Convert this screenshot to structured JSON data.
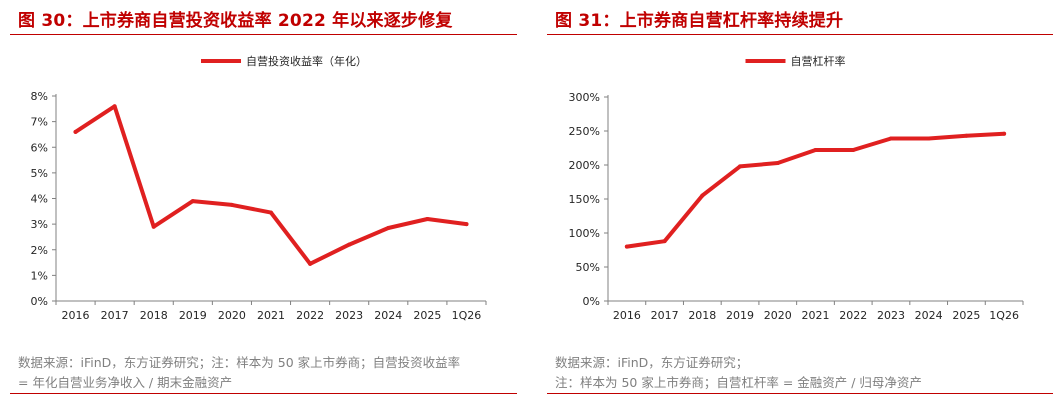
{
  "left": {
    "title": "图 30：上市券商自营投资收益率 2022 年以来逐步修复",
    "note_line1": "数据来源：iFinD，东方证券研究；注：样本为 50 家上市券商；自营投资收益率",
    "note_line2": "= 年化自营业务净收入 / 期末金融资产",
    "line_color": "#e02020"
  },
  "right": {
    "title": "图 31：上市券商自营杠杆率持续提升",
    "note_line1": "数据来源：iFinD，东方证券研究；",
    "note_line2": "注：样本为 50 家上市券商；自营杠杆率 = 金融资产 / 归母净资产",
    "line_color": "#e02020"
  },
  "chart_data": [
    {
      "type": "line",
      "title": "",
      "categories": [
        "2016",
        "2017",
        "2018",
        "2019",
        "2020",
        "2021",
        "2022",
        "2023",
        "2024",
        "2025",
        "1Q26"
      ],
      "series": [
        {
          "name": "自营投资收益率（年化）",
          "values": [
            6.6,
            7.6,
            2.9,
            3.9,
            3.75,
            3.45,
            1.45,
            2.2,
            2.85,
            3.2,
            3.0
          ]
        }
      ],
      "yticks": [
        "0%",
        "1%",
        "2%",
        "3%",
        "4%",
        "5%",
        "6%",
        "7%",
        "8%"
      ],
      "ylim": [
        0,
        8
      ],
      "legend_position": "top-center",
      "grid": false
    },
    {
      "type": "line",
      "title": "",
      "categories": [
        "2016",
        "2017",
        "2018",
        "2019",
        "2020",
        "2021",
        "2022",
        "2023",
        "2024",
        "2025",
        "1Q26"
      ],
      "series": [
        {
          "name": "自营杠杆率",
          "values": [
            80,
            88,
            155,
            198,
            203,
            222,
            222,
            239,
            239,
            243,
            246
          ]
        }
      ],
      "yticks": [
        "0%",
        "50%",
        "100%",
        "150%",
        "200%",
        "250%",
        "300%"
      ],
      "ylim": [
        0,
        300
      ],
      "legend_position": "top-center",
      "grid": false
    }
  ]
}
